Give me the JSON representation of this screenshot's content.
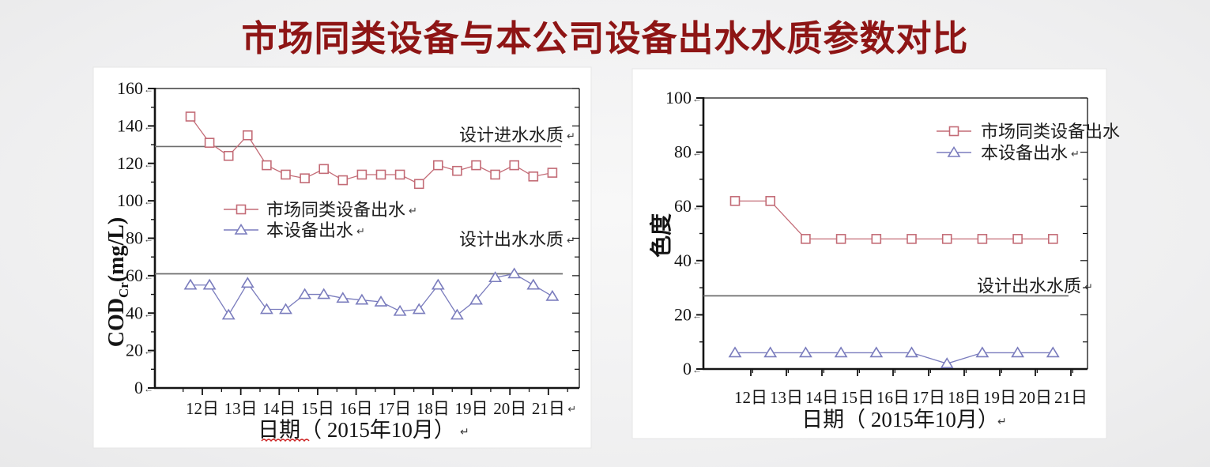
{
  "page": {
    "title": "市场同类设备与本公司设备出水水质参数对比",
    "title_color": "#8e1515",
    "background": "#efeff0",
    "panel_color": "#ffffff"
  },
  "marks": {
    "tick_arrow": "←",
    "return_mark": "↵"
  },
  "chart_data": [
    {
      "type": "line",
      "panel": "left",
      "ylabel_main": "COD",
      "ylabel_sub": "Cr",
      "ylabel_unit": "(mg/L)",
      "xlabel_word": "日期",
      "xlabel_rest": "（ 2015年10月）",
      "xlabel_squiggle": true,
      "ylim": [
        0,
        160
      ],
      "ytick_major_step": 20,
      "ytick_minor_step": 10,
      "x_tick_labels": [
        "12日",
        "13日",
        "14日",
        "15日",
        "16日",
        "17日",
        "18日",
        "19日",
        "20日",
        "21日"
      ],
      "points_per_day": 2,
      "series": [
        {
          "name": "市场同类设备出水",
          "marker": "square",
          "color": "#c36b76",
          "values": [
            145,
            131,
            124,
            135,
            119,
            114,
            112,
            117,
            111,
            114,
            114,
            114,
            109,
            119,
            116,
            119,
            114,
            119,
            113,
            115
          ]
        },
        {
          "name": "本设备出水",
          "marker": "triangle",
          "color": "#7a7cbd",
          "values": [
            55,
            55,
            39,
            56,
            42,
            42,
            50,
            50,
            48,
            47,
            46,
            41,
            42,
            55,
            39,
            47,
            59,
            61,
            55,
            49
          ]
        }
      ],
      "reference_lines": [
        {
          "label": "设计进水水质",
          "value": 129
        },
        {
          "label": "设计出水水质",
          "value": 61
        }
      ]
    },
    {
      "type": "line",
      "panel": "right",
      "ylabel_main": "色度",
      "ylabel_sub": "",
      "ylabel_unit": "",
      "xlabel_word": "日期",
      "xlabel_rest": "（ 2015年10月）",
      "xlabel_squiggle": false,
      "ylim": [
        0,
        100
      ],
      "ytick_major_step": 20,
      "ytick_minor_step": 10,
      "x_tick_labels": [
        "12日",
        "13日",
        "14日",
        "15日",
        "16日",
        "17日",
        "18日",
        "19日",
        "20日",
        "21日"
      ],
      "points_per_day": 1,
      "series": [
        {
          "name": "市场同类设备出水",
          "marker": "square",
          "color": "#c36b76",
          "values": [
            62,
            62,
            48,
            48,
            48,
            48,
            48,
            48,
            48,
            48
          ]
        },
        {
          "name": "本设备出水",
          "marker": "triangle",
          "color": "#7a7cbd",
          "values": [
            6,
            6,
            6,
            6,
            6,
            6,
            2,
            6,
            6,
            6
          ]
        }
      ],
      "reference_lines": [
        {
          "label": "设计出水水质",
          "value": 27
        }
      ]
    }
  ]
}
